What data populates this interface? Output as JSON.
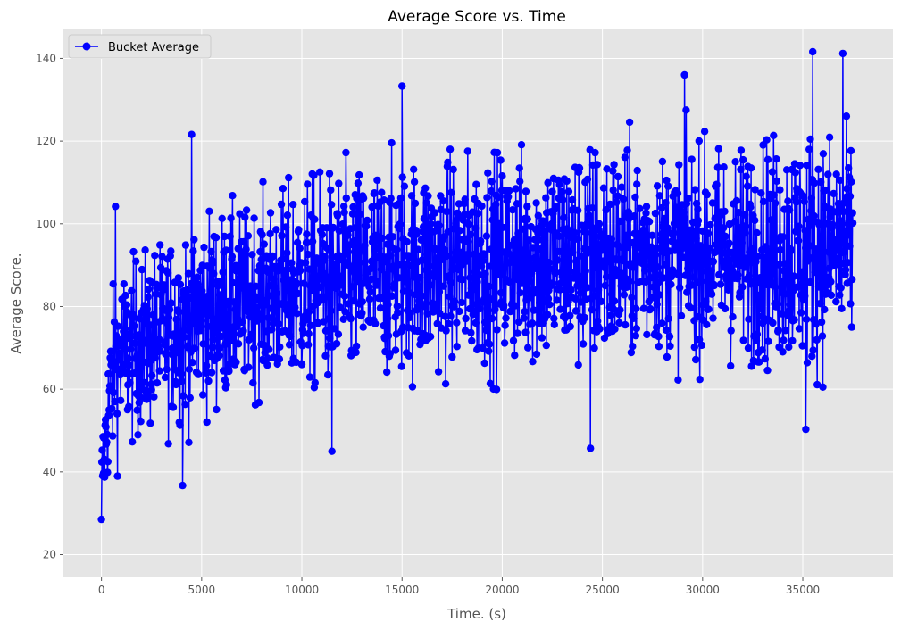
{
  "chart_data": {
    "type": "line",
    "title": "Average Score vs. Time",
    "xlabel": "Time. (s)",
    "ylabel": "Average Score.",
    "xlim": [
      -1900,
      39500
    ],
    "ylim": [
      14.5,
      147
    ],
    "x_ticks": [
      0,
      5000,
      10000,
      15000,
      20000,
      25000,
      30000,
      35000
    ],
    "y_ticks": [
      20,
      40,
      60,
      80,
      100,
      120,
      140
    ],
    "grid": true,
    "legend_position": "top-left",
    "series_color": "#0000ff",
    "background_color": "#e5e5e5",
    "grid_color": "#ffffff",
    "series": [
      {
        "name": "Bucket Average",
        "marker": "circle",
        "sample_interval_s": 20,
        "x_range": [
          0,
          37500
        ],
        "trend": [
          {
            "x": 0,
            "y_min": 20,
            "y_mean": 38,
            "y_max": 50
          },
          {
            "x": 500,
            "y_min": 30,
            "y_mean": 62,
            "y_max": 93
          },
          {
            "x": 1000,
            "y_min": 37,
            "y_mean": 68,
            "y_max": 104
          },
          {
            "x": 2500,
            "y_min": 40,
            "y_mean": 72,
            "y_max": 107
          },
          {
            "x": 5000,
            "y_min": 46,
            "y_mean": 78,
            "y_max": 121
          },
          {
            "x": 7500,
            "y_min": 52,
            "y_mean": 82,
            "y_max": 118
          },
          {
            "x": 10000,
            "y_min": 45,
            "y_mean": 85,
            "y_max": 125
          },
          {
            "x": 12500,
            "y_min": 48,
            "y_mean": 87,
            "y_max": 128
          },
          {
            "x": 15000,
            "y_min": 53,
            "y_mean": 89,
            "y_max": 133
          },
          {
            "x": 17500,
            "y_min": 53,
            "y_mean": 90,
            "y_max": 132
          },
          {
            "x": 20000,
            "y_min": 51,
            "y_mean": 91,
            "y_max": 131
          },
          {
            "x": 22500,
            "y_min": 50,
            "y_mean": 92,
            "y_max": 131
          },
          {
            "x": 25000,
            "y_min": 45,
            "y_mean": 92,
            "y_max": 133
          },
          {
            "x": 27500,
            "y_min": 56,
            "y_mean": 93,
            "y_max": 129
          },
          {
            "x": 30000,
            "y_min": 58,
            "y_mean": 93,
            "y_max": 136
          },
          {
            "x": 32500,
            "y_min": 53,
            "y_mean": 93,
            "y_max": 135
          },
          {
            "x": 35000,
            "y_min": 50,
            "y_mean": 94,
            "y_max": 141
          },
          {
            "x": 37500,
            "y_min": 58,
            "y_mean": 94,
            "y_max": 141
          }
        ],
        "notable_points": [
          {
            "x": 0,
            "y": 20.2
          },
          {
            "x": 0,
            "y": 28.5
          },
          {
            "x": 700,
            "y": 104.2
          },
          {
            "x": 4500,
            "y": 121.6
          },
          {
            "x": 4050,
            "y": 36.7
          },
          {
            "x": 11500,
            "y": 45.0
          },
          {
            "x": 15000,
            "y": 133.3
          },
          {
            "x": 24400,
            "y": 45.7
          },
          {
            "x": 29100,
            "y": 136.0
          },
          {
            "x": 35500,
            "y": 141.6
          },
          {
            "x": 37000,
            "y": 141.2
          },
          {
            "x": 35150,
            "y": 50.3
          }
        ]
      }
    ]
  }
}
